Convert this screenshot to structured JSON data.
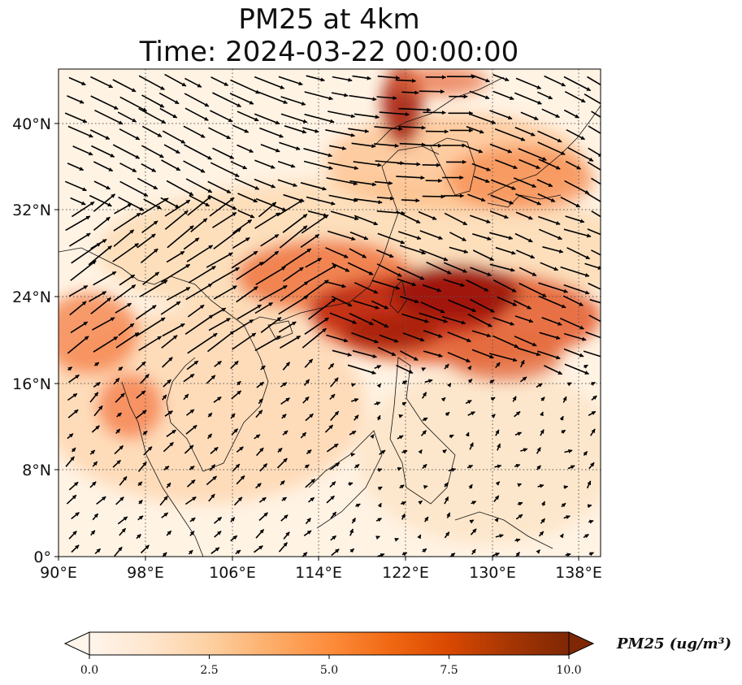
{
  "title": {
    "line1": "PM25 at 4km",
    "line2": "Time: 2024-03-22 00:00:00"
  },
  "map": {
    "lon_range": [
      90,
      140
    ],
    "lat_range": [
      0,
      45
    ],
    "lon_ticks": [
      "90°E",
      "98°E",
      "106°E",
      "114°E",
      "122°E",
      "130°E",
      "138°E"
    ],
    "lat_ticks": [
      "0°",
      "8°N",
      "16°N",
      "24°N",
      "32°N",
      "40°N"
    ],
    "gridlines": true
  },
  "colorbar": {
    "label": "PM25 (ug/m³)",
    "ticks": [
      "0.0",
      "2.5",
      "5.0",
      "7.5",
      "10.0"
    ],
    "range": [
      0,
      10
    ],
    "extend": "both",
    "colormap": [
      "#fff5eb",
      "#fee6ce",
      "#fdd0a2",
      "#fdae6b",
      "#fd8d3c",
      "#f16913",
      "#d94801",
      "#a63603",
      "#7f2704"
    ]
  }
}
